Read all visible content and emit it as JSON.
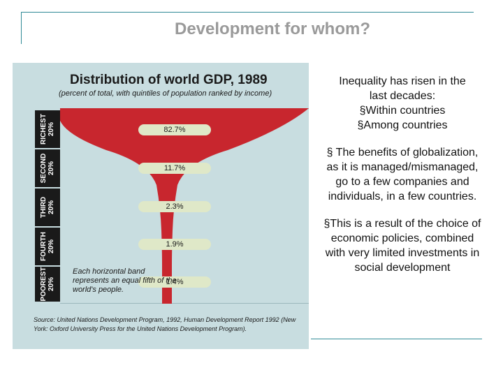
{
  "slide": {
    "title": "Development for whom?"
  },
  "figure": {
    "title": "Distribution of world GDP, 1989",
    "subtitle": "(percent of total, with quintiles of population ranked by income)",
    "rows": [
      {
        "label": "RICHEST\n20%",
        "value": "82.7%"
      },
      {
        "label": "SECOND\n20%",
        "value": "11.7%"
      },
      {
        "label": "THIRD\n20%",
        "value": "2.3%"
      },
      {
        "label": "FOURTH\n20%",
        "value": "1.9%"
      },
      {
        "label": "POOREST\n20%",
        "value": "1.4%"
      }
    ],
    "note": "Each horizontal band represents an equal fifth of the world's people.",
    "source": "Source: United Nations Development Program, 1992, Human Development Report 1992 (New York: Oxford University Press for the United Nations Development Program).",
    "colors": {
      "funnel": "#c8262e",
      "panel": "#c8dde0",
      "pill": "#dfe8c8"
    }
  },
  "chart_data": {
    "type": "bar",
    "categories": [
      "RICHEST 20%",
      "SECOND 20%",
      "THIRD 20%",
      "FOURTH 20%",
      "POOREST 20%"
    ],
    "values": [
      82.7,
      11.7,
      2.3,
      1.9,
      1.4
    ],
    "title": "Distribution of world GDP, 1989",
    "subtitle": "(percent of total, with quintiles of population ranked by income)"
  },
  "text": {
    "p1_line1": "Inequality has risen in the",
    "p1_line2": "last decades:",
    "b1": "§Within countries",
    "b2": "§Among countries",
    "p2": "§  The benefits of globalization,  as it is managed/mismanaged, go to a few companies and individuals, in a few countries.",
    "p3": "§This is a result of the choice of economic policies, combined with very limited investments in social development"
  }
}
